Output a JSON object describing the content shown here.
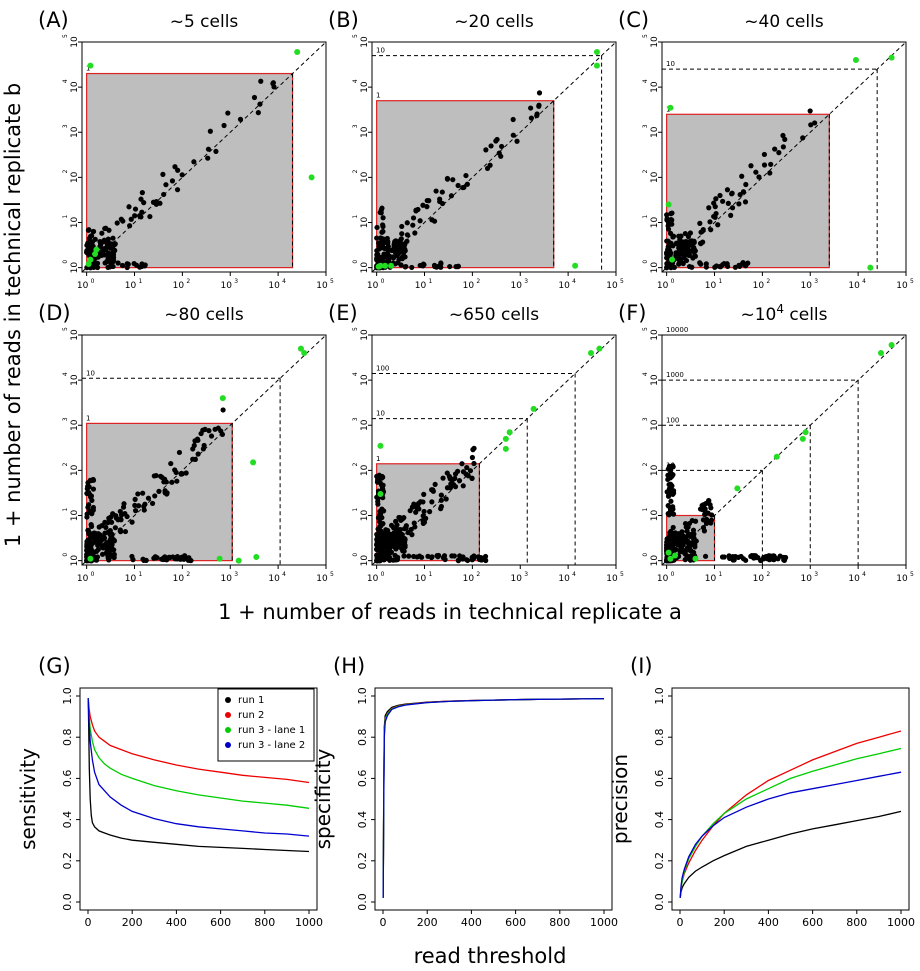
{
  "figure": {
    "scatter_ylabel": "1 + number of reads in technical replicate b",
    "scatter_xlabel": "1 + number of reads in technical replicate a",
    "curve_xlabel": "read threshold"
  },
  "colors": {
    "points": "#000000",
    "highlight_points": "#22dd22",
    "shaded_region": "#bebebe",
    "region_border": "#dd2222",
    "threshold_lines": "#000000"
  },
  "chart_data": [
    {
      "type": "scatter",
      "panel": "(A)",
      "title": "~5 cells",
      "scale": "log10",
      "xlim": [
        0.8,
        100000
      ],
      "ylim": [
        0.8,
        100000
      ],
      "x_ticks": [
        "10",
        "10",
        "10",
        "10",
        "10",
        "10"
      ],
      "x_tick_exps": [
        "0",
        "1",
        "2",
        "3",
        "4",
        "5"
      ],
      "y_ticks": [
        "10",
        "10",
        "10",
        "10",
        "10",
        "10"
      ],
      "y_tick_exps": [
        "0",
        "1",
        "2",
        "3",
        "4",
        "5"
      ],
      "shaded_max": 20000,
      "thresholds": [
        {
          "value": 20000,
          "label": "1"
        }
      ],
      "highlight_points": [
        [
          1.2,
          30000
        ],
        [
          25000,
          60000
        ],
        [
          50000,
          100
        ],
        [
          1.5,
          2
        ],
        [
          1.2,
          1.5
        ],
        [
          1.1,
          1.2
        ],
        [
          1.6,
          2.5
        ]
      ]
    },
    {
      "type": "scatter",
      "panel": "(B)",
      "title": "~20 cells",
      "scale": "log10",
      "xlim": [
        0.8,
        100000
      ],
      "ylim": [
        0.8,
        100000
      ],
      "x_ticks": [
        "10",
        "10",
        "10",
        "10",
        "10",
        "10"
      ],
      "x_tick_exps": [
        "0",
        "1",
        "2",
        "3",
        "4",
        "5"
      ],
      "y_ticks": [
        "10",
        "10",
        "10",
        "10",
        "10",
        "10"
      ],
      "y_tick_exps": [
        "0",
        "1",
        "2",
        "3",
        "4",
        "5"
      ],
      "shaded_max": 5000,
      "thresholds": [
        {
          "value": 5000,
          "label": "1"
        },
        {
          "value": 50000,
          "label": "10"
        }
      ],
      "highlight_points": [
        [
          40000,
          60000
        ],
        [
          40000,
          30000
        ],
        [
          14000,
          1.1
        ],
        [
          1.2,
          1.1
        ],
        [
          1.5,
          1.1
        ],
        [
          2,
          1.1
        ],
        [
          1.1,
          1.05
        ]
      ]
    },
    {
      "type": "scatter",
      "panel": "(C)",
      "title": "~40 cells",
      "scale": "log10",
      "xlim": [
        0.8,
        100000
      ],
      "ylim": [
        0.8,
        100000
      ],
      "x_ticks": [
        "10",
        "10",
        "10",
        "10",
        "10",
        "10"
      ],
      "x_tick_exps": [
        "0",
        "1",
        "2",
        "3",
        "4",
        "5"
      ],
      "y_ticks": [
        "10",
        "10",
        "10",
        "10",
        "10",
        "10"
      ],
      "y_tick_exps": [
        "0",
        "1",
        "2",
        "3",
        "4",
        "5"
      ],
      "shaded_max": 2500,
      "thresholds": [
        {
          "value": 2500,
          "label": "1"
        },
        {
          "value": 25000,
          "label": "10"
        }
      ],
      "highlight_points": [
        [
          1.2,
          3500
        ],
        [
          9000,
          40000
        ],
        [
          50000,
          45000
        ],
        [
          18000,
          1
        ],
        [
          1.1,
          25
        ],
        [
          1.3,
          1.5
        ]
      ]
    },
    {
      "type": "scatter",
      "panel": "(D)",
      "title": "~80 cells",
      "scale": "log10",
      "xlim": [
        0.8,
        100000
      ],
      "ylim": [
        0.8,
        100000
      ],
      "x_ticks": [
        "10",
        "10",
        "10",
        "10",
        "10",
        "10"
      ],
      "x_tick_exps": [
        "0",
        "1",
        "2",
        "3",
        "4",
        "5"
      ],
      "y_ticks": [
        "10",
        "10",
        "10",
        "10",
        "10",
        "10"
      ],
      "y_tick_exps": [
        "0",
        "1",
        "2",
        "3",
        "4",
        "5"
      ],
      "shaded_max": 1100,
      "thresholds": [
        {
          "value": 1100,
          "label": "1"
        },
        {
          "value": 11000,
          "label": "10"
        },
        {
          "value": 110000,
          "label": ""
        }
      ],
      "highlight_points": [
        [
          30000,
          50000
        ],
        [
          35000,
          40000
        ],
        [
          700,
          4000
        ],
        [
          3000,
          150
        ],
        [
          600,
          1.1
        ],
        [
          1500,
          1
        ],
        [
          3500,
          1.2
        ],
        [
          1.2,
          1.1
        ]
      ]
    },
    {
      "type": "scatter",
      "panel": "(E)",
      "title": "~650 cells",
      "scale": "log10",
      "xlim": [
        0.8,
        100000
      ],
      "ylim": [
        0.8,
        100000
      ],
      "x_ticks": [
        "10",
        "10",
        "10",
        "10",
        "10",
        "10"
      ],
      "x_tick_exps": [
        "0",
        "1",
        "2",
        "3",
        "4",
        "5"
      ],
      "y_ticks": [
        "10",
        "10",
        "10",
        "10",
        "10",
        "10"
      ],
      "y_tick_exps": [
        "0",
        "1",
        "2",
        "3",
        "4",
        "5"
      ],
      "shaded_max": 140,
      "thresholds": [
        {
          "value": 140,
          "label": "1"
        },
        {
          "value": 1400,
          "label": "10"
        },
        {
          "value": 14000,
          "label": "100"
        },
        {
          "value": 140000,
          "label": ""
        }
      ],
      "highlight_points": [
        [
          30000,
          40000
        ],
        [
          45000,
          50000
        ],
        [
          1900,
          2300
        ],
        [
          600,
          700
        ],
        [
          500,
          500
        ],
        [
          500,
          300
        ],
        [
          1.2,
          30
        ],
        [
          1.2,
          350
        ]
      ]
    },
    {
      "type": "scatter",
      "panel": "(F)",
      "title": "~10^4 cells",
      "scale": "log10",
      "xlim": [
        0.8,
        100000
      ],
      "ylim": [
        0.8,
        100000
      ],
      "x_ticks": [
        "10",
        "10",
        "10",
        "10",
        "10",
        "10"
      ],
      "x_tick_exps": [
        "0",
        "1",
        "2",
        "3",
        "4",
        "5"
      ],
      "y_ticks": [
        "10",
        "10",
        "10",
        "10",
        "10",
        "10"
      ],
      "y_tick_exps": [
        "0",
        "1",
        "2",
        "3",
        "4",
        "5"
      ],
      "shaded_max": 10,
      "thresholds": [
        {
          "value": 10,
          "label": "1"
        },
        {
          "value": 100,
          "label": "10"
        },
        {
          "value": 1000,
          "label": "100"
        },
        {
          "value": 10000,
          "label": "1000"
        },
        {
          "value": 100000,
          "label": "10000"
        }
      ],
      "highlight_points": [
        [
          30000,
          40000
        ],
        [
          50000,
          60000
        ],
        [
          800,
          700
        ],
        [
          700,
          500
        ],
        [
          200,
          200
        ],
        [
          30,
          40
        ],
        [
          1.2,
          1.1
        ],
        [
          1.5,
          1.3
        ],
        [
          4,
          1.1
        ],
        [
          1.1,
          1.5
        ]
      ]
    },
    {
      "type": "line",
      "panel": "(G)",
      "title": "",
      "xlabel": "",
      "ylabel": "sensitivity",
      "xlim": [
        0,
        1000
      ],
      "ylim": [
        0,
        1
      ],
      "x_ticks": [
        "0",
        "200",
        "400",
        "600",
        "800",
        "1000"
      ],
      "y_ticks": [
        "0.0",
        "0.2",
        "0.4",
        "0.6",
        "0.8",
        "1.0"
      ],
      "legend_position": "top-right",
      "series": [
        {
          "name": "run 1",
          "color": "#000000",
          "x": [
            1,
            3,
            6,
            10,
            15,
            20,
            30,
            50,
            75,
            100,
            150,
            200,
            300,
            400,
            500,
            600,
            700,
            800,
            900,
            1000
          ],
          "y": [
            0.99,
            0.85,
            0.65,
            0.5,
            0.42,
            0.385,
            0.365,
            0.345,
            0.335,
            0.325,
            0.31,
            0.3,
            0.29,
            0.28,
            0.27,
            0.265,
            0.26,
            0.255,
            0.25,
            0.245
          ]
        },
        {
          "name": "run 2",
          "color": "#ee0000",
          "x": [
            1,
            5,
            10,
            20,
            30,
            50,
            75,
            100,
            150,
            200,
            300,
            400,
            500,
            600,
            700,
            800,
            900,
            1000
          ],
          "y": [
            0.99,
            0.94,
            0.9,
            0.86,
            0.83,
            0.8,
            0.78,
            0.76,
            0.74,
            0.72,
            0.69,
            0.665,
            0.645,
            0.63,
            0.615,
            0.605,
            0.595,
            0.58
          ]
        },
        {
          "name": "run 3 - lane 1",
          "color": "#00cc00",
          "x": [
            1,
            5,
            10,
            20,
            30,
            50,
            75,
            100,
            150,
            200,
            300,
            400,
            500,
            600,
            700,
            800,
            900,
            1000
          ],
          "y": [
            0.99,
            0.9,
            0.84,
            0.78,
            0.74,
            0.7,
            0.67,
            0.65,
            0.62,
            0.6,
            0.565,
            0.54,
            0.52,
            0.505,
            0.49,
            0.48,
            0.47,
            0.455
          ]
        },
        {
          "name": "run 3 - lane 2",
          "color": "#0000cc",
          "x": [
            1,
            5,
            10,
            20,
            30,
            50,
            75,
            100,
            150,
            200,
            300,
            400,
            500,
            600,
            700,
            800,
            900,
            1000
          ],
          "y": [
            0.99,
            0.87,
            0.78,
            0.69,
            0.63,
            0.57,
            0.54,
            0.51,
            0.47,
            0.44,
            0.405,
            0.38,
            0.365,
            0.355,
            0.345,
            0.335,
            0.33,
            0.32
          ]
        }
      ]
    },
    {
      "type": "line",
      "panel": "(H)",
      "title": "",
      "xlabel": "",
      "ylabel": "specificity",
      "xlim": [
        0,
        1000
      ],
      "ylim": [
        0,
        1
      ],
      "x_ticks": [
        "0",
        "200",
        "400",
        "600",
        "800",
        "1000"
      ],
      "y_ticks": [
        "0.0",
        "0.2",
        "0.4",
        "0.6",
        "0.8",
        "1.0"
      ],
      "series": [
        {
          "name": "",
          "color": "#000000",
          "x": [
            1,
            3,
            6,
            10,
            20,
            40,
            70,
            100,
            150,
            200,
            300,
            400,
            500,
            600,
            700,
            800,
            900,
            1000
          ],
          "y": [
            0.02,
            0.5,
            0.85,
            0.905,
            0.925,
            0.945,
            0.955,
            0.96,
            0.965,
            0.97,
            0.975,
            0.978,
            0.98,
            0.982,
            0.984,
            0.985,
            0.986,
            0.987
          ]
        },
        {
          "name": "",
          "color": "#ee0000",
          "x": [
            1,
            3,
            6,
            10,
            20,
            40,
            70,
            100,
            150,
            200,
            300,
            400,
            500,
            600,
            700,
            800,
            900,
            1000
          ],
          "y": [
            0.02,
            0.48,
            0.83,
            0.89,
            0.915,
            0.94,
            0.952,
            0.958,
            0.964,
            0.969,
            0.975,
            0.978,
            0.98,
            0.982,
            0.984,
            0.985,
            0.986,
            0.987
          ]
        },
        {
          "name": "",
          "color": "#00cc00",
          "x": [
            1,
            3,
            6,
            10,
            20,
            40,
            70,
            100,
            150,
            200,
            300,
            400,
            500,
            600,
            700,
            800,
            900,
            1000
          ],
          "y": [
            0.02,
            0.47,
            0.82,
            0.885,
            0.912,
            0.938,
            0.95,
            0.957,
            0.963,
            0.968,
            0.974,
            0.977,
            0.98,
            0.982,
            0.984,
            0.985,
            0.986,
            0.987
          ]
        },
        {
          "name": "",
          "color": "#0000cc",
          "x": [
            1,
            3,
            6,
            10,
            20,
            40,
            70,
            100,
            150,
            200,
            300,
            400,
            500,
            600,
            700,
            800,
            900,
            1000
          ],
          "y": [
            0.02,
            0.45,
            0.8,
            0.875,
            0.905,
            0.935,
            0.948,
            0.956,
            0.962,
            0.968,
            0.974,
            0.977,
            0.98,
            0.982,
            0.984,
            0.985,
            0.986,
            0.987
          ]
        }
      ]
    },
    {
      "type": "line",
      "panel": "(I)",
      "title": "",
      "xlabel": "",
      "ylabel": "precision",
      "xlim": [
        0,
        1000
      ],
      "ylim": [
        0,
        1
      ],
      "x_ticks": [
        "0",
        "200",
        "400",
        "600",
        "800",
        "1000"
      ],
      "y_ticks": [
        "0.0",
        "0.2",
        "0.4",
        "0.6",
        "0.8",
        "1.0"
      ],
      "series": [
        {
          "name": "run 1",
          "color": "#000000",
          "x": [
            1,
            5,
            10,
            20,
            40,
            70,
            100,
            150,
            200,
            300,
            400,
            500,
            600,
            700,
            800,
            900,
            1000
          ],
          "y": [
            0.02,
            0.05,
            0.07,
            0.09,
            0.12,
            0.15,
            0.17,
            0.2,
            0.225,
            0.27,
            0.3,
            0.33,
            0.355,
            0.375,
            0.395,
            0.415,
            0.44
          ]
        },
        {
          "name": "run 2",
          "color": "#ee0000",
          "x": [
            1,
            5,
            10,
            20,
            40,
            70,
            100,
            150,
            200,
            300,
            400,
            500,
            600,
            700,
            800,
            900,
            1000
          ],
          "y": [
            0.02,
            0.07,
            0.1,
            0.14,
            0.19,
            0.25,
            0.3,
            0.37,
            0.43,
            0.52,
            0.59,
            0.64,
            0.69,
            0.73,
            0.77,
            0.8,
            0.83
          ]
        },
        {
          "name": "run 3 - lane 1",
          "color": "#00cc00",
          "x": [
            1,
            5,
            10,
            20,
            40,
            70,
            100,
            150,
            200,
            300,
            400,
            500,
            600,
            700,
            800,
            900,
            1000
          ],
          "y": [
            0.02,
            0.07,
            0.1,
            0.15,
            0.21,
            0.27,
            0.32,
            0.38,
            0.43,
            0.5,
            0.55,
            0.6,
            0.635,
            0.665,
            0.695,
            0.72,
            0.745
          ]
        },
        {
          "name": "run 3 - lane 2",
          "color": "#0000cc",
          "x": [
            1,
            5,
            10,
            20,
            40,
            70,
            100,
            150,
            200,
            300,
            400,
            500,
            600,
            700,
            800,
            900,
            1000
          ],
          "y": [
            0.02,
            0.08,
            0.12,
            0.16,
            0.22,
            0.28,
            0.32,
            0.37,
            0.41,
            0.46,
            0.5,
            0.53,
            0.55,
            0.57,
            0.59,
            0.61,
            0.63
          ]
        }
      ]
    }
  ]
}
